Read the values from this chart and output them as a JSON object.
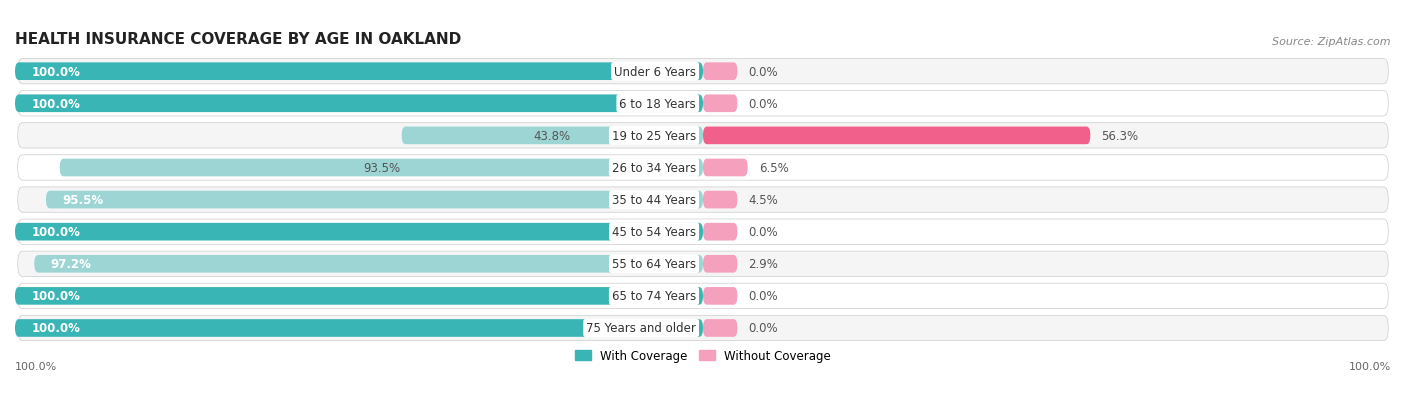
{
  "title": "HEALTH INSURANCE COVERAGE BY AGE IN OAKLAND",
  "source": "Source: ZipAtlas.com",
  "categories": [
    "Under 6 Years",
    "6 to 18 Years",
    "19 to 25 Years",
    "26 to 34 Years",
    "35 to 44 Years",
    "45 to 54 Years",
    "55 to 64 Years",
    "65 to 74 Years",
    "75 Years and older"
  ],
  "with_coverage": [
    100.0,
    100.0,
    43.8,
    93.5,
    95.5,
    100.0,
    97.2,
    100.0,
    100.0
  ],
  "without_coverage": [
    0.0,
    0.0,
    56.3,
    6.5,
    4.5,
    0.0,
    2.9,
    0.0,
    0.0
  ],
  "color_with_dark": "#3ab5b5",
  "color_with_light": "#9dd5d5",
  "color_without_dark": "#f0608a",
  "color_without_light": "#f5a0bc",
  "row_colors": [
    "#f5f5f5",
    "#ffffff"
  ],
  "row_border": "#e0e0e0",
  "title_fontsize": 11,
  "label_fontsize": 8.5,
  "tick_fontsize": 8,
  "legend_fontsize": 8.5,
  "source_fontsize": 8
}
